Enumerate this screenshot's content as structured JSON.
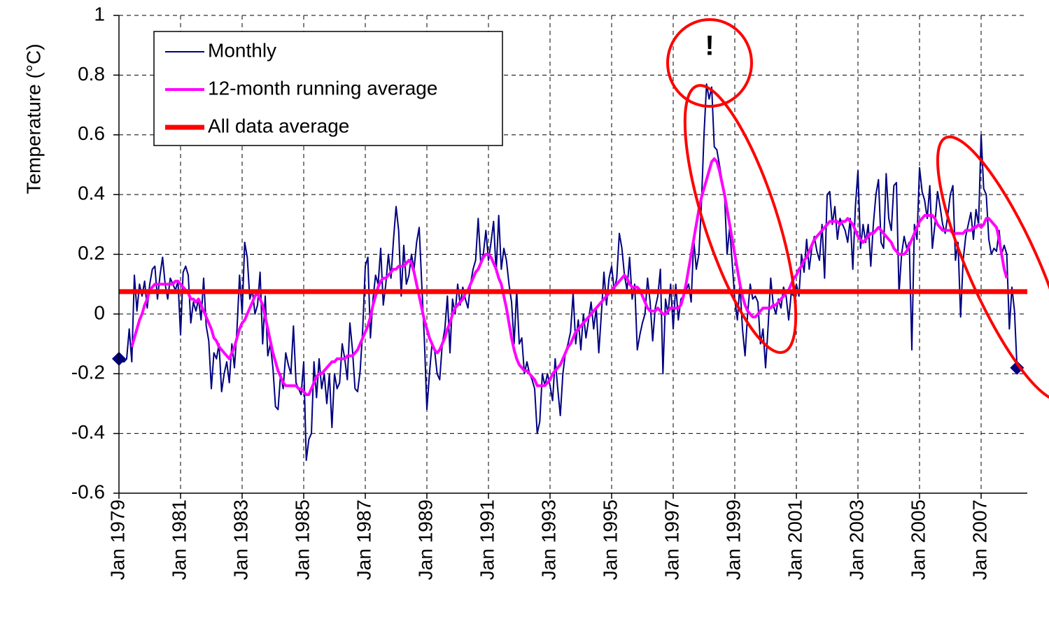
{
  "chart_data": {
    "type": "line",
    "y_label": "Temperature (°C)",
    "annotation": "!",
    "x": [
      "1979-01",
      "1979-02",
      "1979-03",
      "1979-04",
      "1979-05",
      "1979-06",
      "1979-07",
      "1979-08",
      "1979-09",
      "1979-10",
      "1979-11",
      "1979-12",
      "1980-01",
      "1980-02",
      "1980-03",
      "1980-04",
      "1980-05",
      "1980-06",
      "1980-07",
      "1980-08",
      "1980-09",
      "1980-10",
      "1980-11",
      "1980-12",
      "1981-01",
      "1981-02",
      "1981-03",
      "1981-04",
      "1981-05",
      "1981-06",
      "1981-07",
      "1981-08",
      "1981-09",
      "1981-10",
      "1981-11",
      "1981-12",
      "1982-01",
      "1982-02",
      "1982-03",
      "1982-04",
      "1982-05",
      "1982-06",
      "1982-07",
      "1982-08",
      "1982-09",
      "1982-10",
      "1982-11",
      "1982-12",
      "1983-01",
      "1983-02",
      "1983-03",
      "1983-04",
      "1983-05",
      "1983-06",
      "1983-07",
      "1983-08",
      "1983-09",
      "1983-10",
      "1983-11",
      "1983-12",
      "1984-01",
      "1984-02",
      "1984-03",
      "1984-04",
      "1984-05",
      "1984-06",
      "1984-07",
      "1984-08",
      "1984-09",
      "1984-10",
      "1984-11",
      "1984-12",
      "1985-01",
      "1985-02",
      "1985-03",
      "1985-04",
      "1985-05",
      "1985-06",
      "1985-07",
      "1985-08",
      "1985-09",
      "1985-10",
      "1985-11",
      "1985-12",
      "1986-01",
      "1986-02",
      "1986-03",
      "1986-04",
      "1986-05",
      "1986-06",
      "1986-07",
      "1986-08",
      "1986-09",
      "1986-10",
      "1986-11",
      "1986-12",
      "1987-01",
      "1987-02",
      "1987-03",
      "1987-04",
      "1987-05",
      "1987-06",
      "1987-07",
      "1987-08",
      "1987-09",
      "1987-10",
      "1987-11",
      "1987-12",
      "1988-01",
      "1988-02",
      "1988-03",
      "1988-04",
      "1988-05",
      "1988-06",
      "1988-07",
      "1988-08",
      "1988-09",
      "1988-10",
      "1988-11",
      "1988-12",
      "1989-01",
      "1989-02",
      "1989-03",
      "1989-04",
      "1989-05",
      "1989-06",
      "1989-07",
      "1989-08",
      "1989-09",
      "1989-10",
      "1989-11",
      "1989-12",
      "1990-01",
      "1990-02",
      "1990-03",
      "1990-04",
      "1990-05",
      "1990-06",
      "1990-07",
      "1990-08",
      "1990-09",
      "1990-10",
      "1990-11",
      "1990-12",
      "1991-01",
      "1991-02",
      "1991-03",
      "1991-04",
      "1991-05",
      "1991-06",
      "1991-07",
      "1991-08",
      "1991-09",
      "1991-10",
      "1991-11",
      "1991-12",
      "1992-01",
      "1992-02",
      "1992-03",
      "1992-04",
      "1992-05",
      "1992-06",
      "1992-07",
      "1992-08",
      "1992-09",
      "1992-10",
      "1992-11",
      "1992-12",
      "1993-01",
      "1993-02",
      "1993-03",
      "1993-04",
      "1993-05",
      "1993-06",
      "1993-07",
      "1993-08",
      "1993-09",
      "1993-10",
      "1993-11",
      "1993-12",
      "1994-01",
      "1994-02",
      "1994-03",
      "1994-04",
      "1994-05",
      "1994-06",
      "1994-07",
      "1994-08",
      "1994-09",
      "1994-10",
      "1994-11",
      "1994-12",
      "1995-01",
      "1995-02",
      "1995-03",
      "1995-04",
      "1995-05",
      "1995-06",
      "1995-07",
      "1995-08",
      "1995-09",
      "1995-10",
      "1995-11",
      "1995-12",
      "1996-01",
      "1996-02",
      "1996-03",
      "1996-04",
      "1996-05",
      "1996-06",
      "1996-07",
      "1996-08",
      "1996-09",
      "1996-10",
      "1996-11",
      "1996-12",
      "1997-01",
      "1997-02",
      "1997-03",
      "1997-04",
      "1997-05",
      "1997-06",
      "1997-07",
      "1997-08",
      "1997-09",
      "1997-10",
      "1997-11",
      "1997-12",
      "1998-01",
      "1998-02",
      "1998-03",
      "1998-04",
      "1998-05",
      "1998-06",
      "1998-07",
      "1998-08",
      "1998-09",
      "1998-10",
      "1998-11",
      "1998-12",
      "1999-01",
      "1999-02",
      "1999-03",
      "1999-04",
      "1999-05",
      "1999-06",
      "1999-07",
      "1999-08",
      "1999-09",
      "1999-10",
      "1999-11",
      "1999-12",
      "2000-01",
      "2000-02",
      "2000-03",
      "2000-04",
      "2000-05",
      "2000-06",
      "2000-07",
      "2000-08",
      "2000-09",
      "2000-10",
      "2000-11",
      "2000-12",
      "2001-01",
      "2001-02",
      "2001-03",
      "2001-04",
      "2001-05",
      "2001-06",
      "2001-07",
      "2001-08",
      "2001-09",
      "2001-10",
      "2001-11",
      "2001-12",
      "2002-01",
      "2002-02",
      "2002-03",
      "2002-04",
      "2002-05",
      "2002-06",
      "2002-07",
      "2002-08",
      "2002-09",
      "2002-10",
      "2002-11",
      "2002-12",
      "2003-01",
      "2003-02",
      "2003-03",
      "2003-04",
      "2003-05",
      "2003-06",
      "2003-07",
      "2003-08",
      "2003-09",
      "2003-10",
      "2003-11",
      "2003-12",
      "2004-01",
      "2004-02",
      "2004-03",
      "2004-04",
      "2004-05",
      "2004-06",
      "2004-07",
      "2004-08",
      "2004-09",
      "2004-10",
      "2004-11",
      "2004-12",
      "2005-01",
      "2005-02",
      "2005-03",
      "2005-04",
      "2005-05",
      "2005-06",
      "2005-07",
      "2005-08",
      "2005-09",
      "2005-10",
      "2005-11",
      "2005-12",
      "2006-01",
      "2006-02",
      "2006-03",
      "2006-04",
      "2006-05",
      "2006-06",
      "2006-07",
      "2006-08",
      "2006-09",
      "2006-10",
      "2006-11",
      "2006-12",
      "2007-01",
      "2007-02",
      "2007-03",
      "2007-04",
      "2007-05",
      "2007-06",
      "2007-07",
      "2007-08",
      "2007-09",
      "2007-10",
      "2007-11",
      "2007-12",
      "2008-01",
      "2008-02",
      "2008-03"
    ],
    "series": [
      {
        "name": "Monthly",
        "color": "#000080",
        "width": 2,
        "endpoint_markers": true,
        "values": [
          -0.15,
          -0.16,
          -0.16,
          -0.15,
          -0.05,
          -0.16,
          0.13,
          0.01,
          0.1,
          0.06,
          0.11,
          0.02,
          0.1,
          0.15,
          0.16,
          0.05,
          0.13,
          0.19,
          0.1,
          0.05,
          0.12,
          0.1,
          0.08,
          0.11,
          -0.07,
          0.14,
          0.16,
          0.13,
          -0.03,
          0.04,
          0.01,
          0.05,
          -0.02,
          0.12,
          -0.04,
          -0.09,
          -0.25,
          -0.13,
          -0.15,
          -0.1,
          -0.26,
          -0.2,
          -0.16,
          -0.23,
          -0.1,
          -0.18,
          -0.05,
          0.13,
          0.0,
          0.24,
          0.19,
          0.05,
          0.08,
          0.0,
          0.03,
          0.14,
          -0.1,
          0.06,
          -0.14,
          -0.1,
          -0.18,
          -0.31,
          -0.32,
          -0.2,
          -0.25,
          -0.13,
          -0.17,
          -0.2,
          -0.04,
          -0.23,
          -0.25,
          -0.27,
          -0.16,
          -0.49,
          -0.42,
          -0.4,
          -0.16,
          -0.28,
          -0.15,
          -0.25,
          -0.2,
          -0.3,
          -0.2,
          -0.38,
          -0.2,
          -0.25,
          -0.23,
          -0.1,
          -0.15,
          -0.22,
          -0.03,
          -0.12,
          -0.25,
          -0.26,
          -0.19,
          -0.05,
          0.16,
          0.19,
          -0.08,
          0.05,
          0.13,
          0.1,
          0.22,
          0.03,
          0.1,
          0.2,
          0.12,
          0.25,
          0.36,
          0.28,
          0.06,
          0.23,
          0.1,
          0.13,
          0.2,
          0.15,
          0.24,
          0.29,
          0.1,
          -0.08,
          -0.32,
          -0.2,
          -0.1,
          -0.12,
          -0.2,
          -0.22,
          -0.1,
          -0.05,
          0.06,
          -0.13,
          0.05,
          0.0,
          0.1,
          0.03,
          0.09,
          0.05,
          0.02,
          0.1,
          0.15,
          0.18,
          0.32,
          0.17,
          0.2,
          0.28,
          0.18,
          0.24,
          0.31,
          0.14,
          0.33,
          0.15,
          0.22,
          0.18,
          0.1,
          0.04,
          -0.1,
          0.08,
          -0.1,
          -0.08,
          -0.2,
          -0.16,
          -0.2,
          -0.22,
          -0.25,
          -0.4,
          -0.36,
          -0.2,
          -0.24,
          -0.2,
          -0.24,
          -0.29,
          -0.15,
          -0.25,
          -0.34,
          -0.2,
          -0.13,
          -0.1,
          -0.06,
          0.07,
          -0.1,
          -0.02,
          -0.12,
          0.0,
          -0.08,
          -0.02,
          0.04,
          -0.05,
          0.02,
          -0.13,
          0.0,
          0.14,
          0.03,
          0.12,
          0.16,
          0.08,
          0.12,
          0.27,
          0.22,
          0.13,
          0.08,
          0.19,
          0.05,
          0.1,
          -0.12,
          -0.07,
          -0.03,
          0.0,
          0.12,
          0.04,
          -0.09,
          0.02,
          0.06,
          0.15,
          -0.2,
          0.05,
          0.0,
          0.1,
          -0.05,
          0.1,
          -0.02,
          0.05,
          0.06,
          0.08,
          0.1,
          0.04,
          0.25,
          0.15,
          0.2,
          0.37,
          0.6,
          0.77,
          0.72,
          0.76,
          0.56,
          0.55,
          0.5,
          0.45,
          0.4,
          0.2,
          0.29,
          0.17,
          0.05,
          -0.02,
          0.1,
          -0.05,
          -0.14,
          0.0,
          0.1,
          0.05,
          0.06,
          0.04,
          -0.1,
          -0.05,
          -0.18,
          -0.04,
          0.12,
          0.03,
          0.0,
          0.05,
          0.02,
          0.09,
          0.06,
          -0.02,
          0.07,
          0.06,
          0.1,
          0.06,
          0.2,
          0.14,
          0.25,
          0.15,
          0.22,
          0.26,
          0.21,
          0.18,
          0.3,
          0.12,
          0.4,
          0.41,
          0.3,
          0.36,
          0.25,
          0.32,
          0.3,
          0.28,
          0.24,
          0.32,
          0.15,
          0.36,
          0.48,
          0.22,
          0.3,
          0.24,
          0.3,
          0.16,
          0.3,
          0.4,
          0.45,
          0.24,
          0.22,
          0.47,
          0.32,
          0.28,
          0.43,
          0.44,
          0.07,
          0.2,
          0.26,
          0.22,
          0.24,
          -0.12,
          0.3,
          0.25,
          0.49,
          0.41,
          0.38,
          0.32,
          0.43,
          0.22,
          0.3,
          0.41,
          0.36,
          0.3,
          0.27,
          0.33,
          0.4,
          0.43,
          0.18,
          0.24,
          -0.01,
          0.18,
          0.26,
          0.3,
          0.34,
          0.25,
          0.35,
          0.3,
          0.6,
          0.42,
          0.4,
          0.25,
          0.2,
          0.22,
          0.21,
          0.28,
          0.2,
          0.23,
          0.2,
          -0.05,
          0.09,
          0.01,
          -0.18
        ]
      },
      {
        "name": "12-month running average",
        "color": "#ff00ff",
        "width": 4,
        "values": [
          null,
          null,
          null,
          null,
          null,
          -0.11,
          -0.08,
          -0.05,
          -0.02,
          0.0,
          0.03,
          0.05,
          0.08,
          0.09,
          0.1,
          0.1,
          0.1,
          0.1,
          0.1,
          0.1,
          0.1,
          0.1,
          0.11,
          0.11,
          0.1,
          0.09,
          0.08,
          0.07,
          0.05,
          0.05,
          0.04,
          0.05,
          0.03,
          0.01,
          -0.01,
          -0.03,
          -0.05,
          -0.08,
          -0.09,
          -0.11,
          -0.12,
          -0.13,
          -0.14,
          -0.15,
          -0.13,
          -0.11,
          -0.08,
          -0.05,
          -0.03,
          -0.02,
          0.0,
          0.02,
          0.04,
          0.06,
          0.07,
          0.05,
          0.03,
          -0.01,
          -0.05,
          -0.09,
          -0.13,
          -0.16,
          -0.19,
          -0.21,
          -0.23,
          -0.24,
          -0.24,
          -0.24,
          -0.24,
          -0.24,
          -0.25,
          -0.25,
          -0.26,
          -0.27,
          -0.27,
          -0.25,
          -0.23,
          -0.21,
          -0.2,
          -0.2,
          -0.19,
          -0.18,
          -0.17,
          -0.16,
          -0.16,
          -0.15,
          -0.15,
          -0.15,
          -0.15,
          -0.14,
          -0.14,
          -0.14,
          -0.13,
          -0.12,
          -0.1,
          -0.08,
          -0.06,
          -0.04,
          -0.01,
          0.03,
          0.06,
          0.09,
          0.11,
          0.12,
          0.12,
          0.13,
          0.14,
          0.15,
          0.15,
          0.16,
          0.16,
          0.16,
          0.17,
          0.18,
          0.17,
          0.14,
          0.1,
          0.06,
          0.02,
          -0.02,
          -0.05,
          -0.08,
          -0.1,
          -0.12,
          -0.13,
          -0.12,
          -0.1,
          -0.08,
          -0.05,
          -0.03,
          0.0,
          0.02,
          0.03,
          0.04,
          0.05,
          0.07,
          0.08,
          0.1,
          0.12,
          0.14,
          0.15,
          0.17,
          0.19,
          0.2,
          0.2,
          0.19,
          0.17,
          0.15,
          0.12,
          0.1,
          0.06,
          0.02,
          -0.03,
          -0.08,
          -0.12,
          -0.15,
          -0.17,
          -0.18,
          -0.19,
          -0.19,
          -0.2,
          -0.21,
          -0.22,
          -0.24,
          -0.24,
          -0.24,
          -0.24,
          -0.23,
          -0.22,
          -0.2,
          -0.19,
          -0.18,
          -0.17,
          -0.15,
          -0.13,
          -0.11,
          -0.1,
          -0.08,
          -0.06,
          -0.05,
          -0.04,
          -0.03,
          -0.02,
          -0.01,
          0.0,
          0.01,
          0.02,
          0.03,
          0.04,
          0.05,
          0.06,
          0.07,
          0.08,
          0.09,
          0.1,
          0.11,
          0.12,
          0.13,
          0.12,
          0.1,
          0.09,
          0.09,
          0.09,
          0.08,
          0.06,
          0.04,
          0.02,
          0.01,
          0.01,
          0.01,
          0.02,
          0.01,
          0.0,
          0.0,
          0.01,
          0.02,
          0.02,
          0.02,
          0.02,
          0.03,
          0.06,
          0.1,
          0.15,
          0.2,
          0.25,
          0.3,
          0.35,
          0.39,
          0.42,
          0.45,
          0.48,
          0.51,
          0.52,
          0.51,
          0.48,
          0.44,
          0.4,
          0.35,
          0.3,
          0.25,
          0.2,
          0.15,
          0.1,
          0.06,
          0.03,
          0.01,
          0.0,
          -0.01,
          -0.01,
          0.0,
          0.01,
          0.02,
          0.02,
          0.02,
          0.02,
          0.03,
          0.03,
          0.04,
          0.05,
          0.06,
          0.07,
          0.08,
          0.1,
          0.12,
          0.13,
          0.15,
          0.16,
          0.18,
          0.19,
          0.21,
          0.23,
          0.25,
          0.26,
          0.27,
          0.28,
          0.29,
          0.3,
          0.31,
          0.31,
          0.31,
          0.31,
          0.3,
          0.31,
          0.31,
          0.32,
          0.31,
          0.3,
          0.28,
          0.26,
          0.25,
          0.24,
          0.25,
          0.26,
          0.27,
          0.27,
          0.28,
          0.29,
          0.28,
          0.27,
          0.26,
          0.25,
          0.24,
          0.22,
          0.21,
          0.2,
          0.2,
          0.2,
          0.21,
          0.23,
          0.25,
          0.27,
          0.29,
          0.31,
          0.32,
          0.33,
          0.33,
          0.33,
          0.33,
          0.32,
          0.3,
          0.29,
          0.28,
          0.28,
          0.28,
          0.28,
          0.27,
          0.27,
          0.27,
          0.27,
          0.27,
          0.28,
          0.28,
          0.28,
          0.29,
          0.29,
          0.3,
          0.29,
          0.3,
          0.32,
          0.32,
          0.31,
          0.3,
          0.29,
          0.25,
          0.2,
          0.15,
          0.12,
          null,
          null,
          null,
          null
        ]
      }
    ],
    "reference_line": {
      "name": "All data average",
      "value": 0.075,
      "color": "#ff0000",
      "width": 7
    },
    "xlim": [
      "1979-01",
      "2008-07"
    ],
    "xticks": [
      {
        "value": "1979-01",
        "label": "Jan 1979"
      },
      {
        "value": "1981-01",
        "label": "Jan 1981"
      },
      {
        "value": "1983-01",
        "label": "Jan 1983"
      },
      {
        "value": "1985-01",
        "label": "Jan 1985"
      },
      {
        "value": "1987-01",
        "label": "Jan 1987"
      },
      {
        "value": "1989-01",
        "label": "Jan 1989"
      },
      {
        "value": "1991-01",
        "label": "Jan 1991"
      },
      {
        "value": "1993-01",
        "label": "Jan 1993"
      },
      {
        "value": "1995-01",
        "label": "Jan 1995"
      },
      {
        "value": "1997-01",
        "label": "Jan 1997"
      },
      {
        "value": "1999-01",
        "label": "Jan 1999"
      },
      {
        "value": "2001-01",
        "label": "Jan 2001"
      },
      {
        "value": "2003-01",
        "label": "Jan 2003"
      },
      {
        "value": "2005-01",
        "label": "Jan 2005"
      },
      {
        "value": "2007-01",
        "label": "Jan 2007"
      }
    ],
    "ylim": [
      -0.6,
      1
    ],
    "yticks": [
      -0.6,
      -0.4,
      -0.2,
      0,
      0.2,
      0.4,
      0.6,
      0.8,
      1
    ],
    "grid": true,
    "legend": "upper left"
  }
}
